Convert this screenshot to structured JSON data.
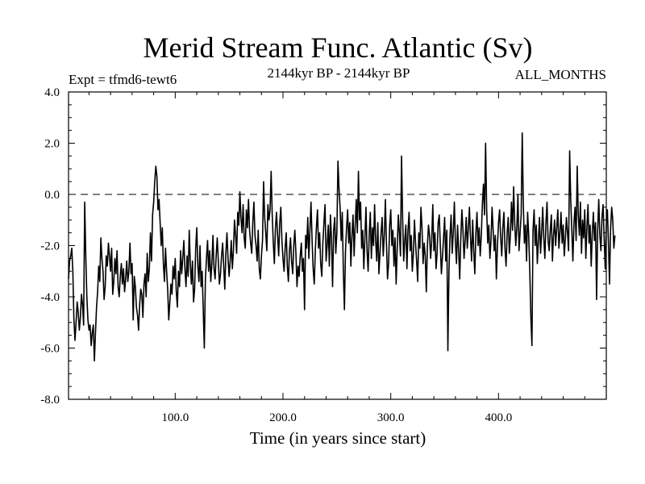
{
  "chart_data": {
    "type": "line",
    "title": "Merid Stream Func. Atlantic (Sv)",
    "subtitle_left": "Expt = tfmd6-tewt6",
    "subtitle_center": "2144kyr BP - 2144kyr BP",
    "subtitle_right": "ALL_MONTHS",
    "xlabel": "Time (in years since start)",
    "ylabel": "",
    "xlim": [
      1,
      500
    ],
    "ylim": [
      -8,
      4
    ],
    "x_ticks": [
      100,
      200,
      300,
      400
    ],
    "x_tick_labels": [
      "100.0",
      "200.0",
      "300.0",
      "400.0"
    ],
    "y_ticks": [
      -8,
      -6,
      -4,
      -2,
      0,
      2,
      4
    ],
    "y_tick_labels": [
      "-8.0",
      "-6.0",
      "-4.0",
      "-2.0",
      "0.0",
      "2.0",
      "4.0"
    ],
    "reference_line": 0,
    "series": [
      {
        "name": "Merid Stream Func. Atlantic",
        "x_start": 1,
        "x_step": 1,
        "values": [
          -3.3,
          -2.6,
          -2.4,
          -2.1,
          -3.0,
          -4.9,
          -5.7,
          -5.0,
          -4.2,
          -4.6,
          -5.3,
          -4.8,
          -3.9,
          -4.3,
          -5.1,
          -0.3,
          -2.4,
          -4.0,
          -4.9,
          -5.3,
          -5.1,
          -5.9,
          -5.4,
          -5.1,
          -6.5,
          -5.4,
          -4.4,
          -3.8,
          -2.8,
          -3.4,
          -1.7,
          -2.5,
          -3.0,
          -4.1,
          -3.6,
          -2.4,
          -2.8,
          -1.9,
          -2.4,
          -3.0,
          -2.1,
          -3.9,
          -3.4,
          -2.5,
          -3.1,
          -2.2,
          -3.6,
          -4.0,
          -3.2,
          -2.7,
          -3.5,
          -2.9,
          -3.8,
          -3.3,
          -2.6,
          -3.4,
          -3.0,
          -1.9,
          -3.1,
          -2.7,
          -4.9,
          -3.2,
          -3.6,
          -4.4,
          -4.7,
          -5.3,
          -4.3,
          -3.7,
          -3.9,
          -4.8,
          -3.5,
          -3.1,
          -4.0,
          -2.3,
          -3.4,
          -2.9,
          -1.5,
          -2.6,
          -0.8,
          -0.3,
          0.5,
          1.1,
          0.7,
          -0.6,
          -0.2,
          -1.1,
          -2.0,
          -1.3,
          -2.7,
          -3.4,
          -2.1,
          -3.0,
          -3.7,
          -4.9,
          -4.2,
          -3.5,
          -3.9,
          -2.8,
          -3.3,
          -2.5,
          -3.8,
          -4.4,
          -3.0,
          -3.6,
          -2.2,
          -3.1,
          -2.5,
          -1.8,
          -2.9,
          -3.6,
          -2.4,
          -3.2,
          -1.4,
          -2.7,
          -3.5,
          -2.6,
          -4.2,
          -3.7,
          -2.1,
          -1.3,
          -2.8,
          -3.4,
          -2.0,
          -3.6,
          -3.0,
          -4.5,
          -6.0,
          -3.3,
          -2.5,
          -1.8,
          -3.0,
          -2.2,
          -3.4,
          -2.7,
          -1.6,
          -2.9,
          -3.3,
          -2.4,
          -1.7,
          -2.6,
          -3.5,
          -3.1,
          -2.4,
          -1.9,
          -2.8,
          -3.7,
          -2.3,
          -1.5,
          -2.5,
          -3.2,
          -2.6,
          -1.8,
          -2.9,
          -2.2,
          -1.0,
          -1.6,
          -2.3,
          -0.7,
          -1.2,
          0.1,
          -0.9,
          -1.5,
          -0.4,
          -1.7,
          -2.1,
          -0.6,
          -1.3,
          -0.2,
          -1.4,
          -1.9,
          -2.3,
          -1.1,
          -0.3,
          -1.6,
          -2.0,
          -2.6,
          -1.4,
          -2.9,
          -3.3,
          -2.4,
          -1.8,
          0.5,
          -0.9,
          -1.5,
          -2.2,
          -0.4,
          -1.0,
          -0.6,
          0.9,
          -0.8,
          -1.9,
          -2.7,
          -1.3,
          -0.7,
          -1.6,
          -2.4,
          -1.1,
          -0.5,
          -1.8,
          -2.5,
          -3.0,
          -2.1,
          -1.5,
          -2.8,
          -3.4,
          -2.2,
          -1.7,
          -2.6,
          -3.1,
          -2.0,
          -1.4,
          -2.3,
          -3.6,
          -2.8,
          -3.2,
          -2.4,
          -1.9,
          -3.0,
          -2.5,
          -4.5,
          -1.6,
          -2.1,
          -0.9,
          -2.5,
          -1.4,
          -0.3,
          -1.8,
          -2.9,
          -3.5,
          -2.2,
          -1.3,
          -0.6,
          -2.1,
          -1.5,
          -2.7,
          -3.2,
          -1.9,
          -1.1,
          -0.4,
          -2.6,
          -2.0,
          -1.2,
          -2.8,
          -0.8,
          -1.7,
          -3.6,
          -1.4,
          -0.9,
          -2.3,
          -1.5,
          1.3,
          0.2,
          -0.5,
          -1.8,
          -0.7,
          -3.0,
          -4.5,
          -2.2,
          -1.3,
          -0.6,
          -1.9,
          -1.1,
          -2.8,
          -1.6,
          -0.8,
          -2.4,
          -1.2,
          -0.2,
          -1.5,
          0.9,
          -1.0,
          -0.3,
          -2.1,
          -1.4,
          -2.9,
          -1.7,
          -0.5,
          -2.2,
          -3.0,
          -1.6,
          -0.7,
          -2.5,
          -1.3,
          -2.0,
          -0.4,
          -1.8,
          -2.6,
          -1.1,
          -3.1,
          -2.3,
          -1.5,
          -0.9,
          -2.4,
          -1.6,
          -0.2,
          -1.9,
          -3.3,
          -2.7,
          -1.2,
          -0.6,
          -2.0,
          -1.4,
          -2.8,
          -1.7,
          -3.5,
          -2.1,
          -0.8,
          -1.5,
          -2.4,
          1.5,
          -0.9,
          -2.6,
          -1.8,
          -1.2,
          -2.9,
          -1.4,
          -0.7,
          -2.2,
          -1.6,
          -3.0,
          -2.3,
          -1.0,
          -1.9,
          -2.6,
          -3.4,
          -1.5,
          -2.1,
          -0.5,
          -1.3,
          -2.7,
          -1.9,
          -2.4,
          -3.8,
          -2.0,
          -1.2,
          -1.6,
          -2.5,
          -1.8,
          -0.4,
          -2.2,
          -1.5,
          -2.9,
          -2.3,
          -1.1,
          -0.8,
          -2.0,
          -3.1,
          -2.4,
          -1.7,
          -0.9,
          -2.6,
          -1.4,
          -6.1,
          -3.0,
          -1.6,
          -0.8,
          -2.3,
          -1.5,
          -0.3,
          -1.9,
          -2.7,
          -1.2,
          -2.2,
          -3.3,
          -1.7,
          -0.6,
          -1.4,
          -2.5,
          -1.8,
          -0.9,
          -2.1,
          -1.3,
          -0.5,
          -1.7,
          -2.6,
          -1.0,
          -2.2,
          -3.1,
          -1.5,
          -0.7,
          -2.0,
          -1.3,
          -2.4,
          -1.6,
          -0.4,
          0.4,
          -0.8,
          2.0,
          -0.6,
          -1.9,
          -1.2,
          -2.5,
          -1.8,
          -0.5,
          -1.4,
          -2.2,
          -1.6,
          -3.3,
          -2.0,
          -1.1,
          -0.6,
          -1.7,
          -2.4,
          -1.3,
          -0.7,
          -2.1,
          -2.8,
          -1.5,
          -0.9,
          -2.3,
          -1.6,
          -0.3,
          -1.4,
          0.3,
          -1.1,
          -2.0,
          -1.3,
          0.0,
          -2.2,
          -1.5,
          -0.8,
          2.4,
          -0.4,
          -1.9,
          -1.2,
          -2.6,
          -0.7,
          -1.6,
          -3.0,
          -4.8,
          -5.9,
          -1.4,
          -0.6,
          -2.0,
          -1.2,
          -2.7,
          -1.8,
          -0.9,
          -2.3,
          -1.5,
          -0.5,
          -1.7,
          -2.5,
          -1.1,
          -0.3,
          -1.8,
          -2.2,
          -1.4,
          -0.8,
          -2.6,
          -1.6,
          -1.0,
          -2.0,
          -1.3,
          -0.6,
          -2.1,
          -1.5,
          -0.7,
          -1.9,
          -1.2,
          -2.4,
          -1.7,
          -0.9,
          -1.5,
          -2.2,
          1.7,
          -0.2,
          -1.4,
          -2.6,
          -1.1,
          -0.5,
          -1.8,
          1.1,
          -0.8,
          -1.6,
          -0.3,
          -2.3,
          -1.0,
          -1.7,
          -0.6,
          -2.5,
          -1.3,
          -0.4,
          -1.9,
          -1.2,
          -2.8,
          -1.5,
          -0.7,
          -1.8,
          -1.1,
          -4.1,
          -1.4,
          -0.2,
          -1.6,
          -2.2,
          -0.9,
          -0.4,
          -1.7,
          -2.9,
          -1.2,
          -0.6,
          -1.9,
          -3.5,
          -1.3,
          -0.5,
          -1.0,
          -2.1,
          -1.6
        ]
      }
    ]
  }
}
